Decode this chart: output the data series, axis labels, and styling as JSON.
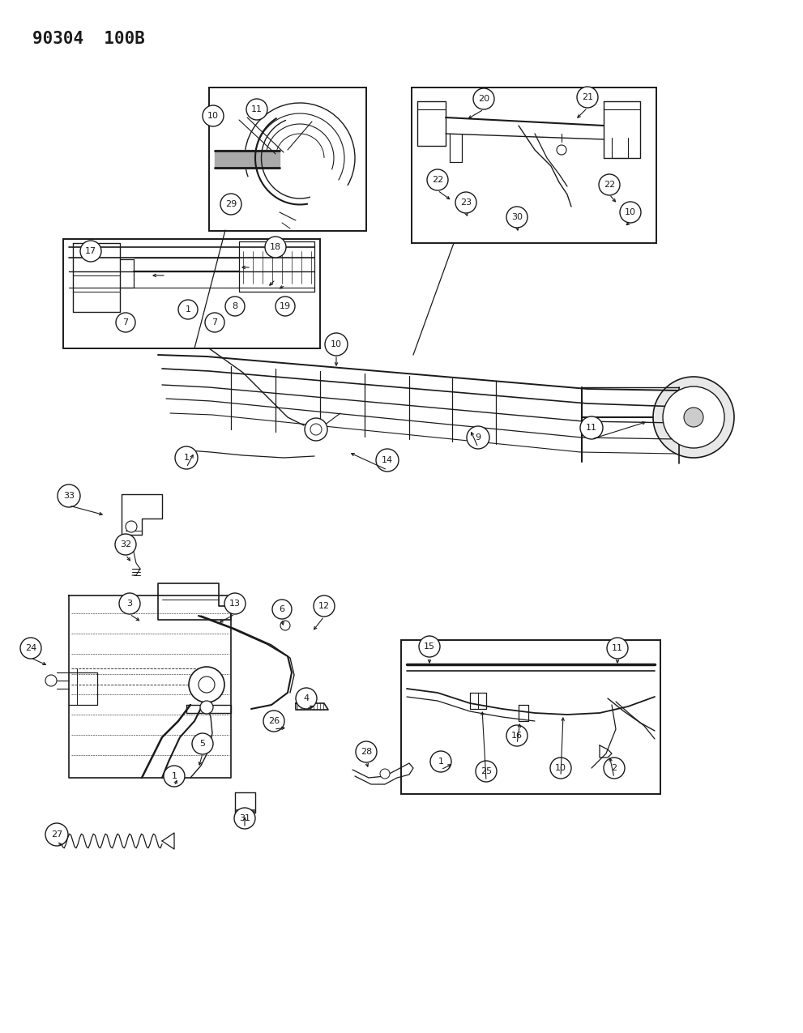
{
  "title": "90304  100B",
  "bg_color": "#ffffff",
  "line_color": "#1a1a1a",
  "gray": "#888888",
  "title_fontsize": 15,
  "circle_r": 0.016,
  "circle_fontsize": 7.5
}
